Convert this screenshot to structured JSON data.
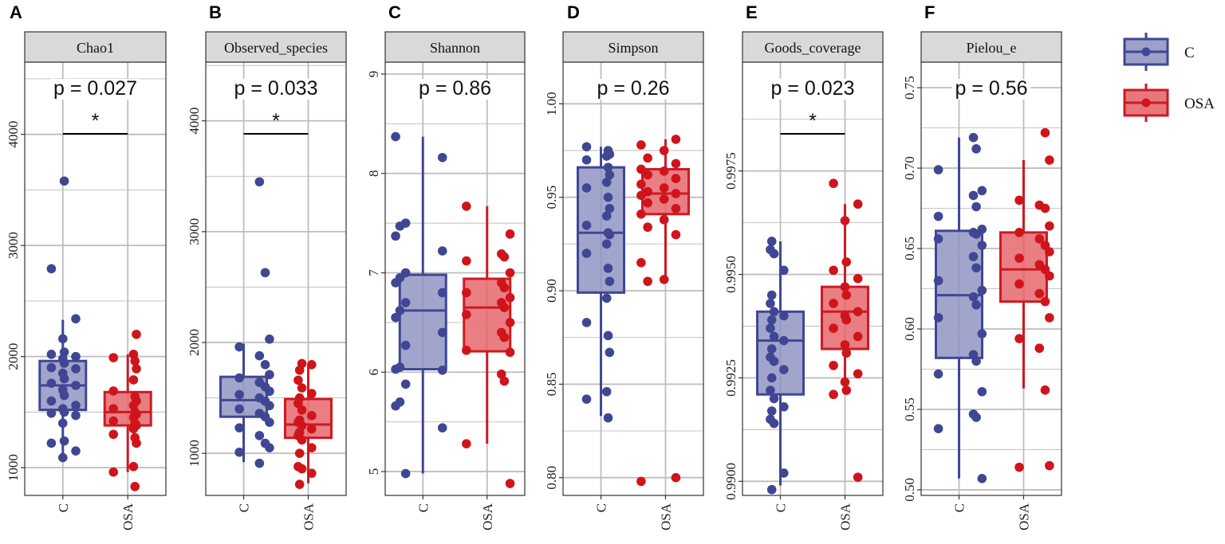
{
  "chart_data": [
    {
      "type": "box",
      "panel": "A",
      "title": "Chao1",
      "categories": [
        "C",
        "OSA"
      ],
      "yticks": [
        "1000",
        "2000",
        "3000",
        "4000"
      ],
      "ylim": [
        750,
        4650
      ],
      "p_label": "p = 0.027",
      "significance": "*",
      "groups": [
        {
          "name": "C",
          "box": {
            "q1": 1520,
            "median": 1740,
            "q3": 1960,
            "whisker_low": 1090,
            "whisker_high": 2330
          },
          "points": [
            1090,
            1150,
            1220,
            1240,
            1400,
            1470,
            1490,
            1500,
            1530,
            1560,
            1600,
            1650,
            1700,
            1740,
            1760,
            1800,
            1850,
            1890,
            1900,
            1940,
            1980,
            2000,
            2020,
            2040,
            2160,
            2340,
            2790,
            3580
          ]
        },
        {
          "name": "OSA",
          "box": {
            "q1": 1380,
            "median": 1500,
            "q3": 1680,
            "whisker_low": 960,
            "whisker_high": 2020
          },
          "points": [
            830,
            960,
            1010,
            1220,
            1270,
            1300,
            1350,
            1380,
            1400,
            1420,
            1450,
            1480,
            1500,
            1530,
            1560,
            1600,
            1640,
            1690,
            1790,
            1890,
            1960,
            1990,
            2020,
            2200
          ]
        }
      ]
    },
    {
      "type": "box",
      "panel": "B",
      "title": "Observed_species",
      "categories": [
        "C",
        "OSA"
      ],
      "yticks": [
        "1000",
        "2000",
        "3000",
        "4000"
      ],
      "ylim": [
        620,
        4530
      ],
      "p_label": "p = 0.033",
      "significance": "*",
      "groups": [
        {
          "name": "C",
          "box": {
            "q1": 1330,
            "median": 1480,
            "q3": 1690,
            "whisker_low": 920,
            "whisker_high": 1990
          },
          "points": [
            910,
            1010,
            1050,
            1090,
            1160,
            1230,
            1280,
            1330,
            1360,
            1400,
            1430,
            1470,
            1500,
            1530,
            1560,
            1600,
            1640,
            1680,
            1710,
            1800,
            1880,
            1960,
            2030,
            2630,
            3450
          ]
        },
        {
          "name": "OSA",
          "box": {
            "q1": 1140,
            "median": 1260,
            "q3": 1490,
            "whisker_low": 730,
            "whisker_high": 1800
          },
          "points": [
            720,
            820,
            860,
            880,
            1000,
            1050,
            1120,
            1160,
            1190,
            1220,
            1250,
            1280,
            1300,
            1340,
            1390,
            1450,
            1500,
            1540,
            1590,
            1660,
            1750,
            1800,
            1810
          ]
        }
      ]
    },
    {
      "type": "box",
      "panel": "C",
      "title": "Shannon",
      "categories": [
        "C",
        "OSA"
      ],
      "yticks": [
        "5",
        "6",
        "7",
        "8",
        "9"
      ],
      "ylim": [
        4.76,
        9.12
      ],
      "p_label": "p = 0.86",
      "significance": "",
      "groups": [
        {
          "name": "C",
          "box": {
            "q1": 6.03,
            "median": 6.62,
            "q3": 6.98,
            "whisker_low": 4.98,
            "whisker_high": 8.37
          },
          "points": [
            4.98,
            5.44,
            5.66,
            5.7,
            5.88,
            6.02,
            6.03,
            6.05,
            6.27,
            6.4,
            6.55,
            6.62,
            6.7,
            6.8,
            6.9,
            6.95,
            7.0,
            7.22,
            7.37,
            7.47,
            7.5,
            8.16,
            8.37
          ]
        },
        {
          "name": "OSA",
          "box": {
            "q1": 6.21,
            "median": 6.65,
            "q3": 6.94,
            "whisker_low": 5.28,
            "whisker_high": 7.67
          },
          "points": [
            4.88,
            5.28,
            5.91,
            5.98,
            6.2,
            6.22,
            6.35,
            6.4,
            6.5,
            6.58,
            6.65,
            6.7,
            6.75,
            6.8,
            6.85,
            6.9,
            7.0,
            7.12,
            7.16,
            7.19,
            7.39,
            7.67
          ]
        }
      ]
    },
    {
      "type": "box",
      "panel": "D",
      "title": "Simpson",
      "categories": [
        "C",
        "OSA"
      ],
      "yticks": [
        "0.80",
        "0.85",
        "0.90",
        "0.95",
        "1.00"
      ],
      "ylim": [
        0.7905,
        1.0223
      ],
      "p_label": "p = 0.26",
      "significance": "",
      "groups": [
        {
          "name": "C",
          "box": {
            "q1": 0.899,
            "median": 0.931,
            "q3": 0.966,
            "whisker_low": 0.833,
            "whisker_high": 0.977
          },
          "points": [
            0.832,
            0.842,
            0.846,
            0.867,
            0.876,
            0.883,
            0.896,
            0.905,
            0.912,
            0.92,
            0.925,
            0.93,
            0.931,
            0.935,
            0.94,
            0.944,
            0.95,
            0.955,
            0.958,
            0.962,
            0.966,
            0.97,
            0.972,
            0.973,
            0.975,
            0.977
          ]
        },
        {
          "name": "OSA",
          "box": {
            "q1": 0.941,
            "median": 0.952,
            "q3": 0.965,
            "whisker_low": 0.906,
            "whisker_high": 0.981
          },
          "points": [
            0.798,
            0.8,
            0.905,
            0.906,
            0.915,
            0.93,
            0.934,
            0.938,
            0.941,
            0.944,
            0.947,
            0.949,
            0.951,
            0.952,
            0.953,
            0.955,
            0.957,
            0.96,
            0.962,
            0.964,
            0.965,
            0.968,
            0.971,
            0.975,
            0.978,
            0.981
          ]
        }
      ]
    },
    {
      "type": "box",
      "panel": "E",
      "title": "Goods_coverage",
      "categories": [
        "C",
        "OSA"
      ],
      "yticks": [
        "0.9900",
        "0.9925",
        "0.9950",
        "0.9975"
      ],
      "ylim": [
        0.98966,
        1.00013
      ],
      "p_label": "p = 0.023",
      "significance": "*",
      "groups": [
        {
          "name": "C",
          "box": {
            "q1": 0.9921,
            "median": 0.9934,
            "q3": 0.9941,
            "whisker_low": 0.9899,
            "whisker_high": 0.9958
          },
          "points": [
            0.9898,
            0.9902,
            0.9914,
            0.9915,
            0.9917,
            0.9918,
            0.992,
            0.9922,
            0.9925,
            0.9927,
            0.9929,
            0.993,
            0.9932,
            0.9934,
            0.9935,
            0.9937,
            0.9939,
            0.994,
            0.9941,
            0.9943,
            0.9945,
            0.9951,
            0.9955,
            0.9956,
            0.9958
          ]
        },
        {
          "name": "OSA",
          "box": {
            "q1": 0.9932,
            "median": 0.9941,
            "q3": 0.9947,
            "whisker_low": 0.9921,
            "whisker_high": 0.9967
          },
          "points": [
            0.9901,
            0.9921,
            0.9922,
            0.9924,
            0.9926,
            0.9928,
            0.9931,
            0.9933,
            0.9935,
            0.9937,
            0.9939,
            0.994,
            0.9941,
            0.9943,
            0.9945,
            0.9947,
            0.9949,
            0.9951,
            0.9953,
            0.9963,
            0.9967,
            0.9972
          ]
        }
      ]
    },
    {
      "type": "box",
      "panel": "F",
      "title": "Pielou_e",
      "categories": [
        "C",
        "OSA"
      ],
      "yticks": [
        "0.50",
        "0.55",
        "0.60",
        "0.65",
        "0.70",
        "0.75"
      ],
      "ylim": [
        0.4965,
        0.7659
      ],
      "p_label": "p = 0.56",
      "significance": "",
      "groups": [
        {
          "name": "C",
          "box": {
            "q1": 0.582,
            "median": 0.621,
            "q3": 0.661,
            "whisker_low": 0.507,
            "whisker_high": 0.719
          },
          "points": [
            0.507,
            0.538,
            0.545,
            0.547,
            0.561,
            0.572,
            0.58,
            0.584,
            0.597,
            0.607,
            0.615,
            0.62,
            0.624,
            0.63,
            0.638,
            0.645,
            0.652,
            0.656,
            0.659,
            0.66,
            0.662,
            0.67,
            0.676,
            0.683,
            0.686,
            0.699,
            0.712,
            0.719
          ]
        },
        {
          "name": "OSA",
          "box": {
            "q1": 0.617,
            "median": 0.637,
            "q3": 0.66,
            "whisker_low": 0.563,
            "whisker_high": 0.705
          },
          "points": [
            0.514,
            0.515,
            0.562,
            0.588,
            0.594,
            0.607,
            0.617,
            0.622,
            0.628,
            0.633,
            0.637,
            0.64,
            0.644,
            0.648,
            0.652,
            0.656,
            0.66,
            0.664,
            0.675,
            0.677,
            0.68,
            0.705,
            0.722
          ]
        }
      ]
    }
  ],
  "legend": {
    "items": [
      {
        "label": "C",
        "fill": "#9da0c8",
        "stroke": "#3f4794",
        "point": "#3f4794"
      },
      {
        "label": "OSA",
        "fill": "#e8777c",
        "stroke": "#cc1a22",
        "point": "#d0141b"
      }
    ]
  },
  "colors": {
    "panel_bg": "#ffffff",
    "strip_bg": "#d9d9d9",
    "grid": "#bdbdbd",
    "border": "#333333"
  }
}
